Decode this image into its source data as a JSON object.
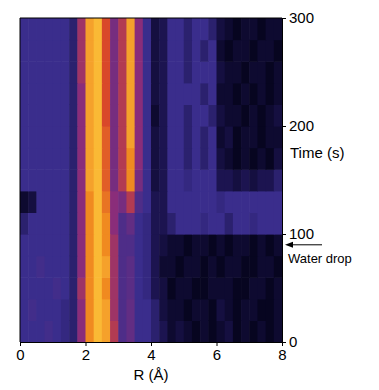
{
  "chart_data": {
    "type": "heatmap",
    "x_label": "R (Å)",
    "y_label": "Time (s)",
    "xlim": [
      0,
      8
    ],
    "ylim": [
      0,
      300
    ],
    "xticks": [
      0,
      2,
      4,
      6,
      8
    ],
    "yticks": [
      0,
      100,
      200,
      300
    ],
    "zlim": [
      0,
      1
    ],
    "x_edges": [
      0,
      0.25,
      0.5,
      0.75,
      1,
      1.25,
      1.5,
      1.75,
      2,
      2.25,
      2.5,
      2.75,
      3,
      3.25,
      3.5,
      3.75,
      4,
      4.25,
      4.5,
      4.75,
      5,
      5.25,
      5.5,
      5.75,
      6,
      6.25,
      6.5,
      6.75,
      7,
      7.25,
      7.5,
      7.75,
      8
    ],
    "y_edges": [
      0,
      20,
      40,
      60,
      80,
      100,
      120,
      140,
      160,
      180,
      200,
      220,
      240,
      260,
      280,
      300
    ],
    "cells": [
      [
        0.3,
        0.3,
        0.3,
        0.32,
        0.3,
        0.28,
        0.25,
        0.5,
        0.85,
        0.95,
        0.9,
        0.6,
        0.35,
        0.4,
        0.3,
        0.3,
        0.25,
        0.2,
        0.1,
        0.15,
        0.1,
        0.05,
        0.1,
        0.05,
        0.1,
        0.15,
        0.05,
        0.1,
        0.05,
        0.1,
        0.05,
        0.1
      ],
      [
        0.3,
        0.32,
        0.3,
        0.3,
        0.3,
        0.28,
        0.25,
        0.5,
        0.85,
        0.95,
        0.9,
        0.55,
        0.35,
        0.4,
        0.3,
        0.3,
        0.25,
        0.15,
        0.1,
        0.1,
        0.05,
        0.1,
        0.1,
        0.05,
        0.15,
        0.1,
        0.05,
        0.1,
        0.1,
        0.05,
        0.05,
        0.1
      ],
      [
        0.3,
        0.3,
        0.3,
        0.3,
        0.32,
        0.3,
        0.25,
        0.55,
        0.85,
        0.95,
        0.85,
        0.55,
        0.35,
        0.38,
        0.3,
        0.28,
        0.2,
        0.15,
        0.05,
        0.1,
        0.1,
        0.05,
        0.05,
        0.1,
        0.1,
        0.1,
        0.05,
        0.05,
        0.1,
        0.1,
        0.05,
        0.1
      ],
      [
        0.3,
        0.3,
        0.32,
        0.3,
        0.3,
        0.3,
        0.25,
        0.5,
        0.85,
        0.95,
        0.9,
        0.55,
        0.35,
        0.38,
        0.3,
        0.28,
        0.2,
        0.1,
        0.1,
        0.05,
        0.1,
        0.1,
        0.05,
        0.1,
        0.05,
        0.1,
        0.1,
        0.05,
        0.05,
        0.1,
        0.1,
        0.05
      ],
      [
        0.3,
        0.3,
        0.3,
        0.3,
        0.3,
        0.3,
        0.25,
        0.5,
        0.85,
        0.95,
        0.85,
        0.55,
        0.35,
        0.35,
        0.3,
        0.28,
        0.2,
        0.15,
        0.1,
        0.1,
        0.05,
        0.1,
        0.1,
        0.05,
        0.1,
        0.05,
        0.1,
        0.1,
        0.05,
        0.1,
        0.05,
        0.1
      ],
      [
        0.25,
        0.3,
        0.3,
        0.3,
        0.3,
        0.3,
        0.25,
        0.5,
        0.85,
        0.95,
        0.85,
        0.5,
        0.35,
        0.4,
        0.3,
        0.28,
        0.2,
        0.2,
        0.25,
        0.3,
        0.3,
        0.3,
        0.28,
        0.3,
        0.3,
        0.25,
        0.3,
        0.3,
        0.28,
        0.3,
        0.3,
        0.3
      ],
      [
        0.1,
        0.15,
        0.3,
        0.3,
        0.3,
        0.3,
        0.25,
        0.5,
        0.85,
        0.95,
        0.8,
        0.5,
        0.45,
        0.6,
        0.35,
        0.3,
        0.2,
        0.2,
        0.3,
        0.3,
        0.3,
        0.3,
        0.3,
        0.3,
        0.28,
        0.3,
        0.3,
        0.3,
        0.3,
        0.3,
        0.3,
        0.3
      ],
      [
        0.3,
        0.3,
        0.3,
        0.3,
        0.3,
        0.3,
        0.25,
        0.5,
        0.9,
        0.95,
        0.75,
        0.45,
        0.6,
        0.85,
        0.45,
        0.3,
        0.15,
        0.2,
        0.3,
        0.3,
        0.28,
        0.3,
        0.3,
        0.3,
        0.2,
        0.2,
        0.15,
        0.2,
        0.15,
        0.2,
        0.2,
        0.25
      ],
      [
        0.3,
        0.3,
        0.3,
        0.3,
        0.3,
        0.3,
        0.25,
        0.5,
        0.9,
        0.95,
        0.75,
        0.45,
        0.6,
        0.85,
        0.5,
        0.3,
        0.15,
        0.2,
        0.3,
        0.3,
        0.25,
        0.3,
        0.25,
        0.3,
        0.15,
        0.1,
        0.05,
        0.1,
        0.05,
        0.1,
        0.05,
        0.15
      ],
      [
        0.3,
        0.3,
        0.3,
        0.3,
        0.3,
        0.3,
        0.25,
        0.5,
        0.9,
        0.95,
        0.75,
        0.45,
        0.6,
        0.9,
        0.5,
        0.3,
        0.15,
        0.2,
        0.3,
        0.3,
        0.25,
        0.3,
        0.25,
        0.3,
        0.1,
        0.15,
        0.05,
        0.1,
        0.1,
        0.05,
        0.1,
        0.1
      ],
      [
        0.3,
        0.3,
        0.3,
        0.3,
        0.3,
        0.3,
        0.25,
        0.5,
        0.9,
        0.95,
        0.7,
        0.45,
        0.6,
        0.9,
        0.5,
        0.3,
        0.1,
        0.2,
        0.3,
        0.3,
        0.25,
        0.3,
        0.3,
        0.25,
        0.15,
        0.1,
        0.1,
        0.05,
        0.1,
        0.05,
        0.1,
        0.15
      ],
      [
        0.3,
        0.3,
        0.3,
        0.3,
        0.3,
        0.3,
        0.25,
        0.5,
        0.9,
        0.95,
        0.7,
        0.45,
        0.6,
        0.9,
        0.5,
        0.3,
        0.15,
        0.2,
        0.3,
        0.3,
        0.3,
        0.3,
        0.25,
        0.3,
        0.1,
        0.1,
        0.05,
        0.1,
        0.05,
        0.1,
        0.05,
        0.1
      ],
      [
        0.3,
        0.3,
        0.3,
        0.3,
        0.3,
        0.3,
        0.25,
        0.55,
        0.9,
        0.95,
        0.7,
        0.45,
        0.6,
        0.9,
        0.5,
        0.3,
        0.15,
        0.2,
        0.3,
        0.3,
        0.25,
        0.3,
        0.3,
        0.3,
        0.15,
        0.1,
        0.1,
        0.05,
        0.1,
        0.1,
        0.05,
        0.1
      ],
      [
        0.3,
        0.3,
        0.3,
        0.3,
        0.3,
        0.3,
        0.25,
        0.55,
        0.9,
        0.95,
        0.7,
        0.45,
        0.6,
        0.9,
        0.5,
        0.3,
        0.15,
        0.2,
        0.3,
        0.3,
        0.25,
        0.3,
        0.25,
        0.3,
        0.1,
        0.05,
        0.1,
        0.1,
        0.05,
        0.1,
        0.1,
        0.05
      ],
      [
        0.3,
        0.3,
        0.3,
        0.3,
        0.3,
        0.3,
        0.25,
        0.55,
        0.9,
        0.95,
        0.7,
        0.45,
        0.6,
        0.9,
        0.5,
        0.3,
        0.15,
        0.2,
        0.3,
        0.3,
        0.25,
        0.3,
        0.3,
        0.25,
        0.15,
        0.1,
        0.05,
        0.1,
        0.1,
        0.05,
        0.1,
        0.1
      ]
    ],
    "annotations": [
      {
        "text": "Water drop",
        "y": 90
      }
    ]
  }
}
